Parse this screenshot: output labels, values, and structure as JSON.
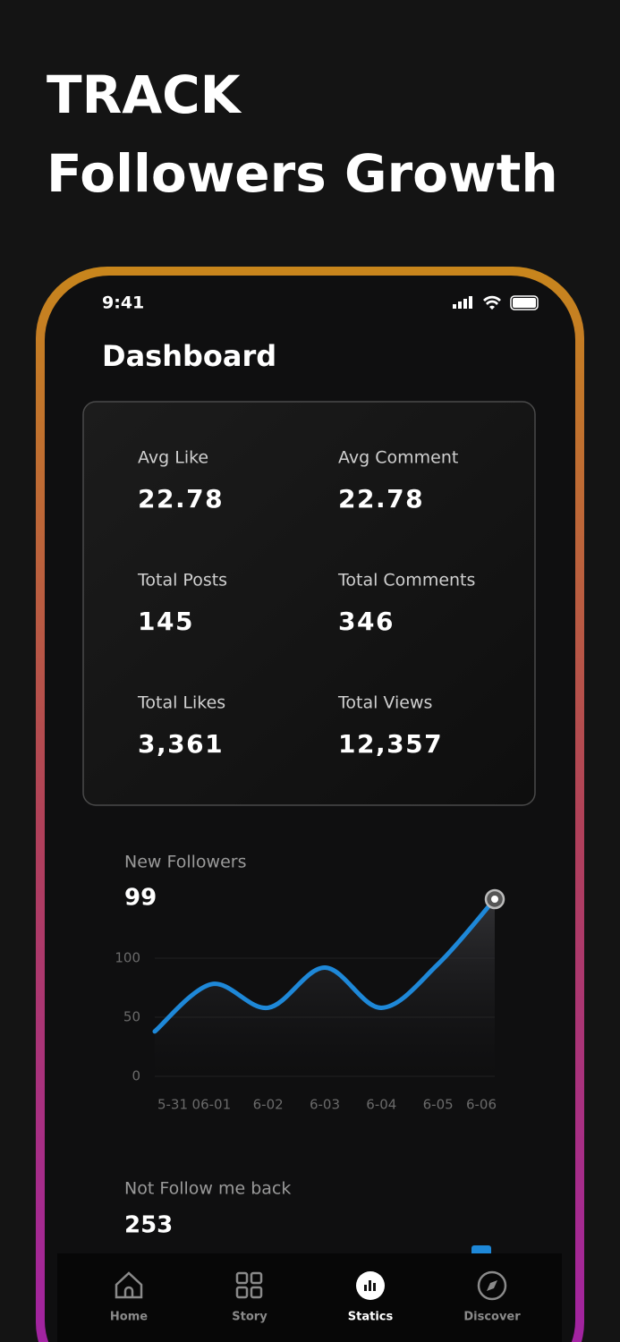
{
  "header": {
    "line1": "TRACK",
    "line2": "Followers Growth"
  },
  "status_bar": {
    "time": "9:41"
  },
  "dashboard": {
    "title": "Dashboard",
    "stats": [
      {
        "label": "Avg Like",
        "value": "22.78"
      },
      {
        "label": "Avg Comment",
        "value": "22.78"
      },
      {
        "label": "Total Posts",
        "value": "145"
      },
      {
        "label": "Total Comments",
        "value": "346"
      },
      {
        "label": "Total Likes",
        "value": "3,361"
      },
      {
        "label": "Total  Views",
        "value": "12,357"
      }
    ]
  },
  "chart_data": {
    "type": "line",
    "title": "New Followers",
    "subtitle": "99",
    "categories": [
      "5-31",
      "06-01",
      "6-02",
      "6-03",
      "6-04",
      "6-05",
      "6-06"
    ],
    "values": [
      38,
      78,
      58,
      92,
      58,
      95,
      150
    ],
    "color": "#1e88d8",
    "ylim": [
      0,
      150
    ],
    "yticks": [
      0,
      50,
      100
    ],
    "grid": true
  },
  "not_follow_back": {
    "title": "Not Follow me back",
    "value": "253"
  },
  "nav": {
    "items": [
      "Home",
      "Story",
      "Statics",
      "Discover"
    ]
  }
}
